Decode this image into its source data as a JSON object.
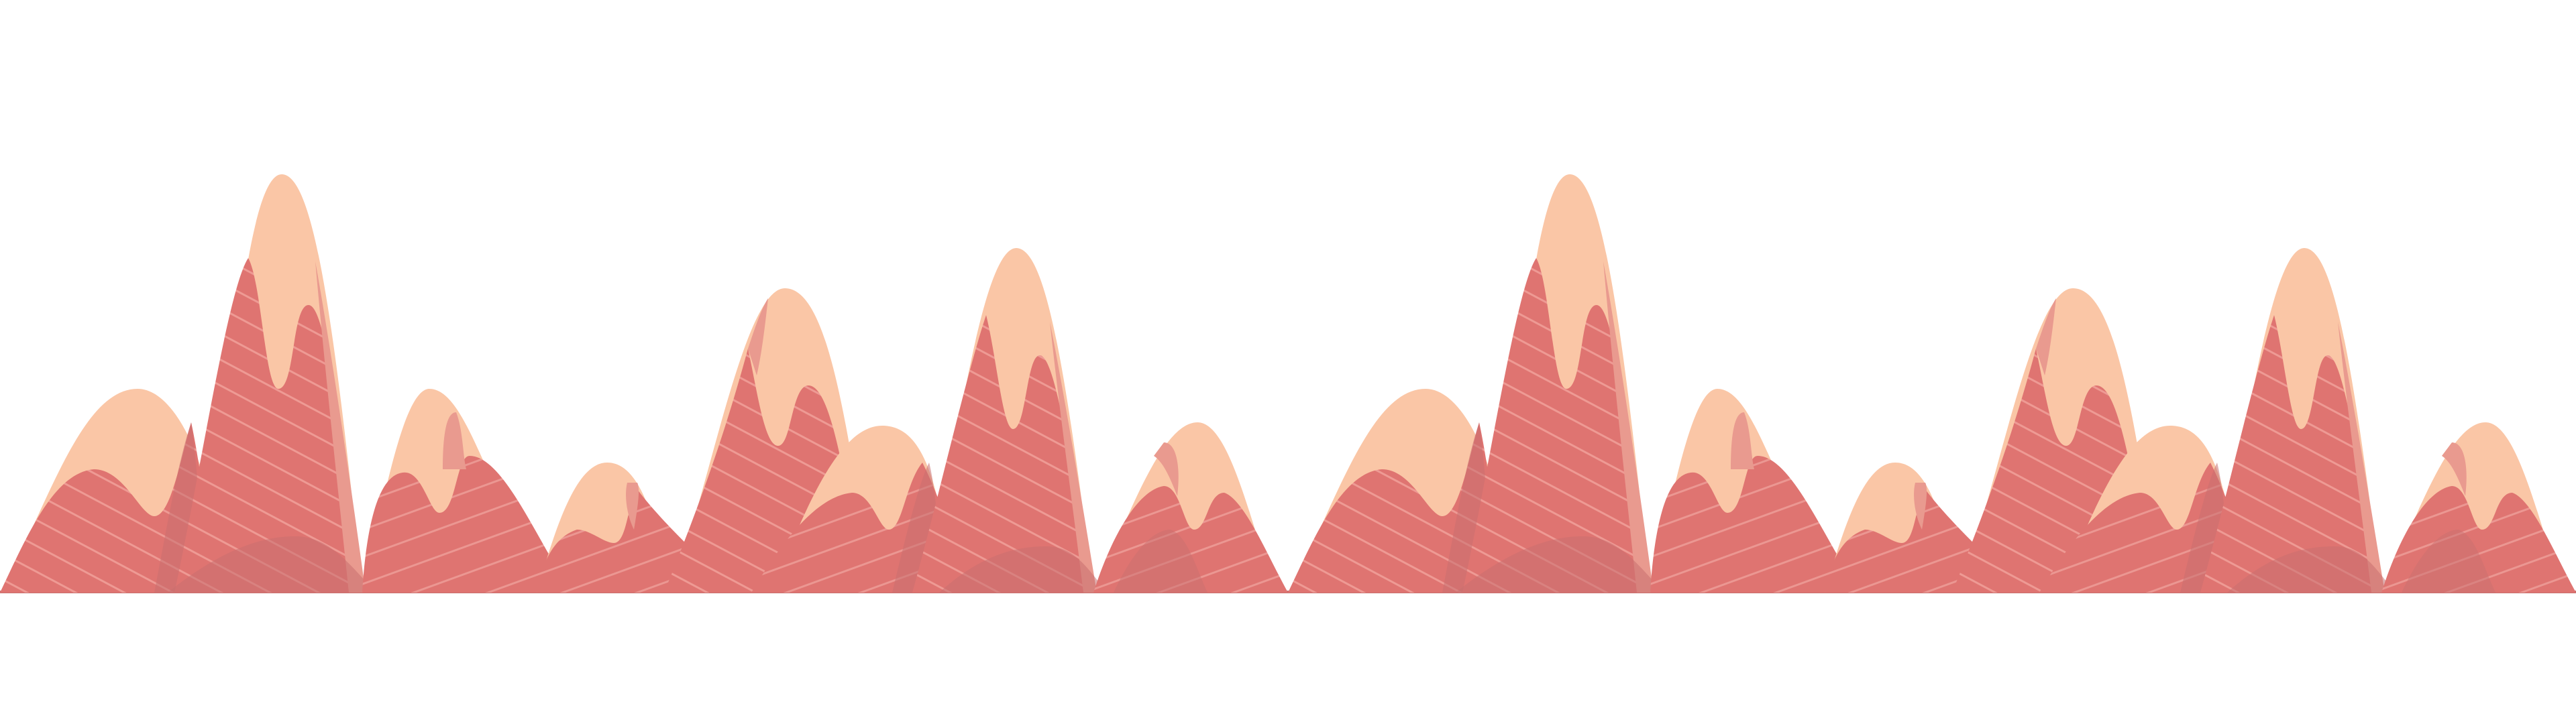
{
  "scene": {
    "background": "#ffffff",
    "colors": {
      "peach": "#fac6a6",
      "red": "#df7471",
      "rose": "#e99a8f",
      "shadow": "#c9706f",
      "stripe": "#f2a6a0"
    },
    "tiles": 2
  }
}
